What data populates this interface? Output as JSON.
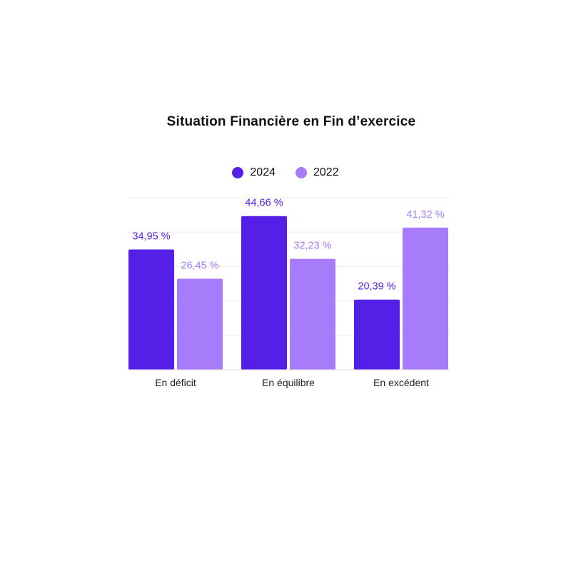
{
  "chart_data": {
    "type": "bar",
    "title": "Situation Financière en Fin d’exercice",
    "categories": [
      "En déficit",
      "En équilibre",
      "En excédent"
    ],
    "series": [
      {
        "name": "2024",
        "color": "#5420E8",
        "values": [
          34.95,
          44.66,
          20.39
        ],
        "labels": [
          "34,95 %",
          "44,66 %",
          "20,39 %"
        ]
      },
      {
        "name": "2022",
        "color": "#A67CFA",
        "values": [
          26.45,
          32.23,
          41.32
        ],
        "labels": [
          "26,45 %",
          "32,23 %",
          "41,32 %"
        ]
      }
    ],
    "ylim": [
      0,
      50
    ],
    "grid": true,
    "legend_position": "top-center",
    "xlabel": "",
    "ylabel": ""
  }
}
